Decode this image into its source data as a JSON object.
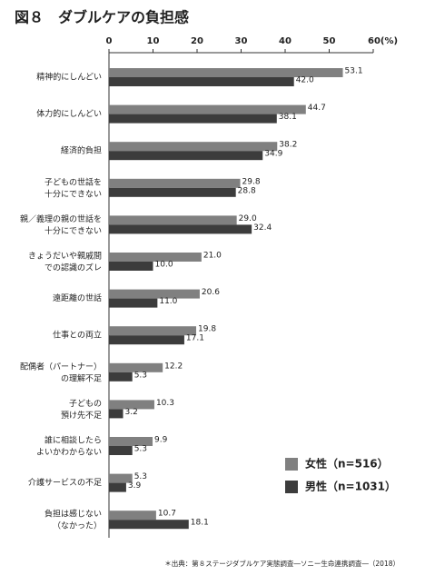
{
  "chart_data": {
    "type": "bar",
    "orientation": "horizontal",
    "title": "図８　ダブルケアの負担感",
    "categories": [
      "精神的にしんどい",
      "体力的にしんどい",
      "経済的負担",
      "子どもの世話を\n十分にできない",
      "親／義理の親の世話を\n十分にできない",
      "きょうだいや親戚間\nでの認識のズレ",
      "遠距離の世話",
      "仕事との両立",
      "配偶者（パートナー）\nの理解不足",
      "子どもの\n預け先不足",
      "誰に相談したら\nよいかわからない",
      "介護サービスの不足",
      "負担は感じない\n（なかった）"
    ],
    "series": [
      {
        "name": "女性（n=516）",
        "color": "#808080",
        "values": [
          53.1,
          44.7,
          38.2,
          29.8,
          29.0,
          21.0,
          20.6,
          19.8,
          12.2,
          10.3,
          9.9,
          5.3,
          10.7
        ],
        "value_labels": [
          "53.1",
          "44.7",
          "38.2",
          "29.8",
          "29.0",
          "21.0",
          "20.6",
          "19.8",
          "12.2",
          "10.3",
          "9.9",
          "5.3",
          "10.7"
        ]
      },
      {
        "name": "男性（n=1031）",
        "color": "#3c3c3c",
        "values": [
          42.0,
          38.1,
          34.9,
          28.8,
          32.4,
          10.0,
          11.0,
          17.1,
          5.3,
          3.2,
          5.3,
          3.9,
          18.1
        ],
        "value_labels": [
          "42.0",
          "38.1",
          "34.9",
          "28.8",
          "32.4",
          "10.0",
          "11.0",
          "17.1",
          "5.3",
          "3.2",
          "5.3",
          "3.9",
          "18.1"
        ]
      }
    ],
    "xlim": [
      0,
      60
    ],
    "xticks": [
      0,
      10,
      20,
      30,
      40,
      50,
      {
        "value": 60,
        "label": "60(%)"
      }
    ],
    "legend": "lower right",
    "note": "＊出典：第８ステージダブルケア実態調査―ソニー生命連携調査―（2018）"
  }
}
